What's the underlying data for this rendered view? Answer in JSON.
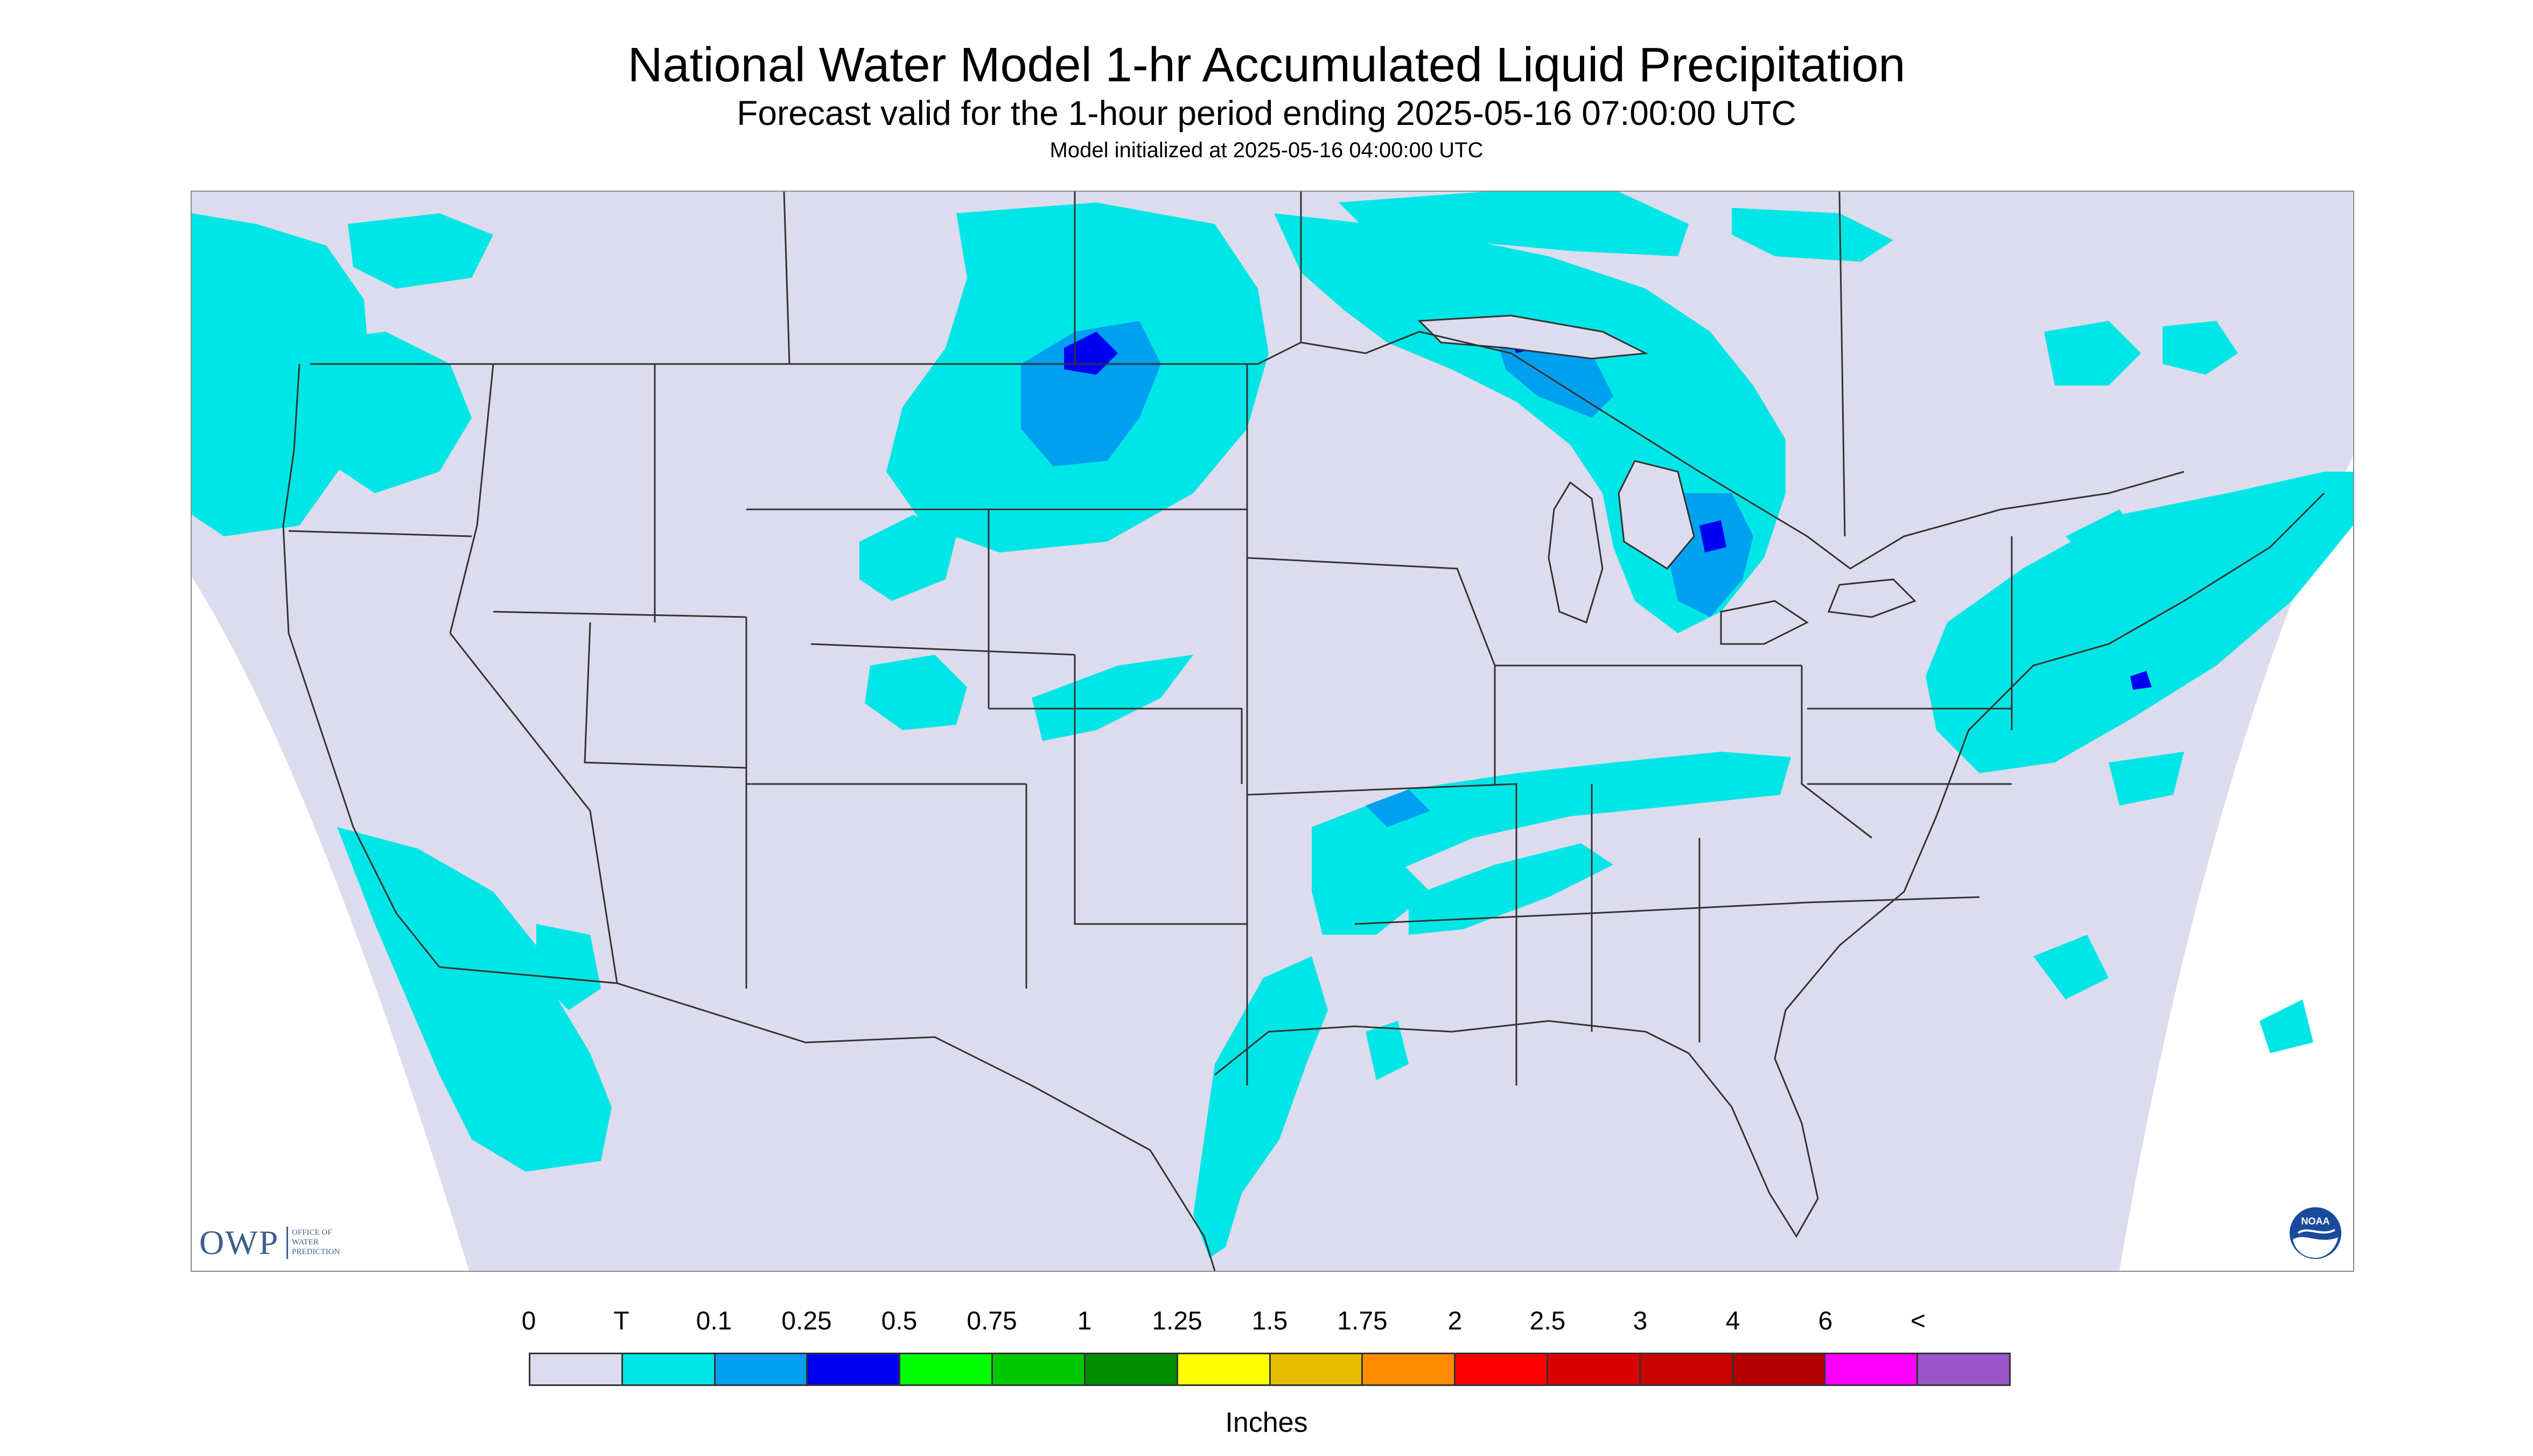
{
  "header": {
    "title": "National Water Model 1-hr Accumulated Liquid Precipitation",
    "subtitle": "Forecast valid for the 1-hour period ending 2025-05-16 07:00:00 UTC",
    "init_line": "Model initialized at 2025-05-16 04:00:00 UTC"
  },
  "logos": {
    "owp_letters": "OWP",
    "owp_text": [
      "OFFICE OF",
      "WATER",
      "PREDICTION"
    ],
    "noaa_text": "NOAA"
  },
  "legend": {
    "labels": [
      "0",
      "T",
      "0.1",
      "0.25",
      "0.5",
      "0.75",
      "1",
      "1.25",
      "1.5",
      "1.75",
      "2",
      "2.5",
      "3",
      "4",
      "6",
      "<"
    ],
    "colors": [
      "#dcdcee",
      "#00e6e6",
      "#00a0f0",
      "#0000f0",
      "#00ff00",
      "#00c800",
      "#008c00",
      "#ffff00",
      "#e6be00",
      "#ff8c00",
      "#ff0000",
      "#d90000",
      "#c80000",
      "#b40000",
      "#ff00ff",
      "#9955c8"
    ],
    "units": "Inches"
  },
  "colors": {
    "map_background": "#dcdcee",
    "outside_domain": "#ffffff",
    "boundary": "#333333"
  }
}
